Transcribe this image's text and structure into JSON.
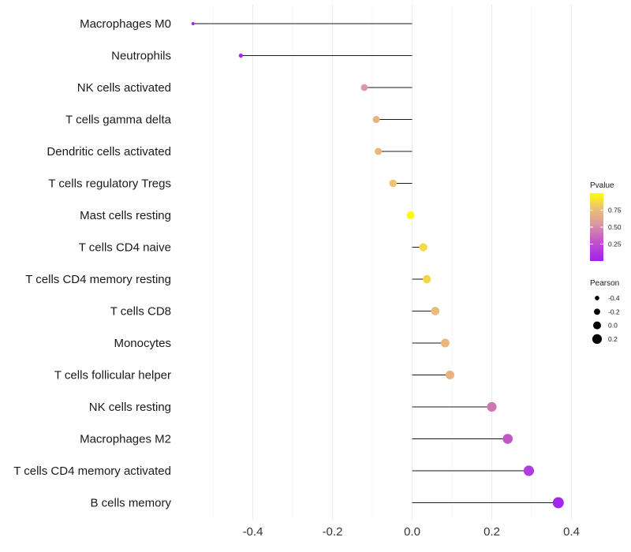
{
  "chart_data": {
    "type": "lollipop",
    "title": "",
    "xlabel": "",
    "ylabel": "",
    "xlim": [
      -0.57,
      0.4
    ],
    "xticks": [
      -0.4,
      -0.2,
      0.0,
      0.2,
      0.4
    ],
    "xtick_labels": [
      "-0.4",
      "-0.2",
      "0.0",
      "0.2",
      "0.4"
    ],
    "grid": true,
    "categories": [
      "Macrophages M0",
      "Neutrophils",
      "NK cells activated",
      "T cells gamma delta",
      "Dendritic cells activated",
      "T cells regulatory  Tregs",
      "Mast cells resting",
      "T cells CD4 naive",
      "T cells CD4 memory resting",
      "T cells CD8",
      "Monocytes",
      "T cells follicular helper",
      "NK cells resting",
      "Macrophages M2",
      "T cells CD4 memory activated",
      "B cells memory"
    ],
    "pearson": [
      -0.55,
      -0.43,
      -0.12,
      -0.09,
      -0.085,
      -0.048,
      -0.004,
      0.028,
      0.037,
      0.058,
      0.083,
      0.095,
      0.2,
      0.24,
      0.293,
      0.367
    ],
    "pvalue": [
      0.02,
      0.04,
      0.55,
      0.7,
      0.72,
      0.78,
      0.98,
      0.87,
      0.86,
      0.74,
      0.72,
      0.7,
      0.42,
      0.3,
      0.15,
      0.03
    ],
    "legend_position": "right",
    "color_legend": {
      "title": "Pvalue",
      "breaks": [
        "0.75",
        "0.50",
        "0.25"
      ],
      "low_color": "#a020f0",
      "high_color": "#ffff00"
    },
    "size_legend": {
      "title": "Pearson",
      "breaks": [
        "-0.4",
        "-0.2",
        "0.0",
        "0.2"
      ]
    }
  }
}
